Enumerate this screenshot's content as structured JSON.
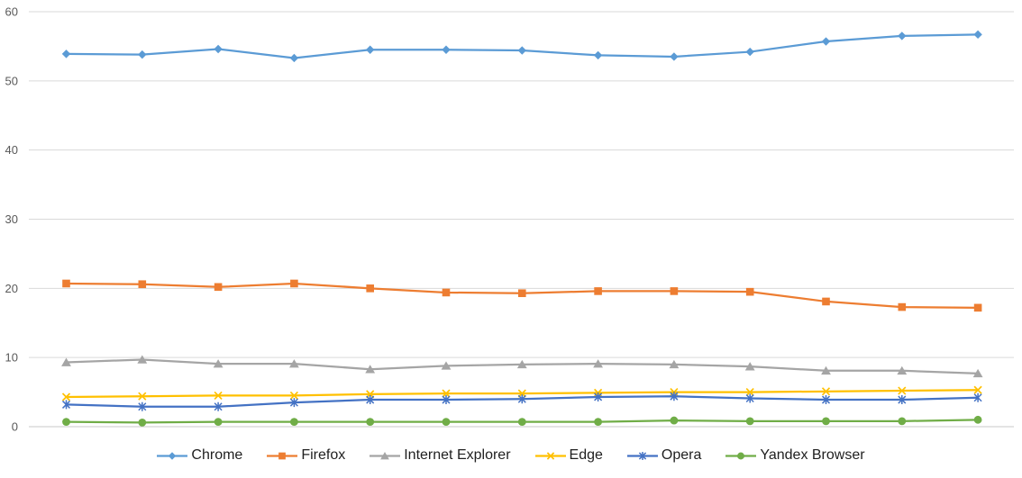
{
  "chart_data": {
    "type": "line",
    "title": "",
    "xlabel": "",
    "ylabel": "",
    "ylim": [
      0,
      60
    ],
    "y_ticks": [
      0,
      10,
      20,
      30,
      40,
      50,
      60
    ],
    "x_axis_labels_visible": false,
    "n_points": 13,
    "grid": true,
    "legend_position": "bottom",
    "gridline_color": "#d9d9d9",
    "axis_line_color": "#c9c9c9",
    "tick_label_color": "#595959",
    "legend_text_color": "#1f1f1f",
    "series": [
      {
        "name": "Chrome",
        "color": "#5B9BD5",
        "marker": "diamond",
        "values": [
          53.9,
          53.8,
          54.6,
          53.3,
          54.5,
          54.5,
          54.4,
          53.7,
          53.5,
          54.2,
          55.7,
          56.5,
          56.7
        ]
      },
      {
        "name": "Firefox",
        "color": "#ED7D31",
        "marker": "square",
        "values": [
          20.7,
          20.6,
          20.2,
          20.7,
          20.0,
          19.4,
          19.3,
          19.6,
          19.6,
          19.5,
          18.1,
          17.3,
          17.2
        ]
      },
      {
        "name": "Internet Explorer",
        "color": "#A5A5A5",
        "marker": "triangle",
        "values": [
          9.3,
          9.7,
          9.1,
          9.1,
          8.3,
          8.8,
          9.0,
          9.1,
          9.0,
          8.7,
          8.1,
          8.1,
          7.7
        ]
      },
      {
        "name": "Edge",
        "color": "#FFC000",
        "marker": "x",
        "values": [
          4.3,
          4.4,
          4.5,
          4.5,
          4.7,
          4.8,
          4.8,
          4.9,
          5.0,
          5.0,
          5.1,
          5.2,
          5.3
        ]
      },
      {
        "name": "Opera",
        "color": "#4472C4",
        "marker": "asterisk",
        "values": [
          3.2,
          2.9,
          2.9,
          3.5,
          3.9,
          3.9,
          4.0,
          4.3,
          4.4,
          4.1,
          3.9,
          3.9,
          4.2
        ]
      },
      {
        "name": "Yandex Browser",
        "color": "#70AD47",
        "marker": "circle",
        "values": [
          0.7,
          0.6,
          0.7,
          0.7,
          0.7,
          0.7,
          0.7,
          0.7,
          0.9,
          0.8,
          0.8,
          0.8,
          1.0
        ]
      }
    ]
  }
}
